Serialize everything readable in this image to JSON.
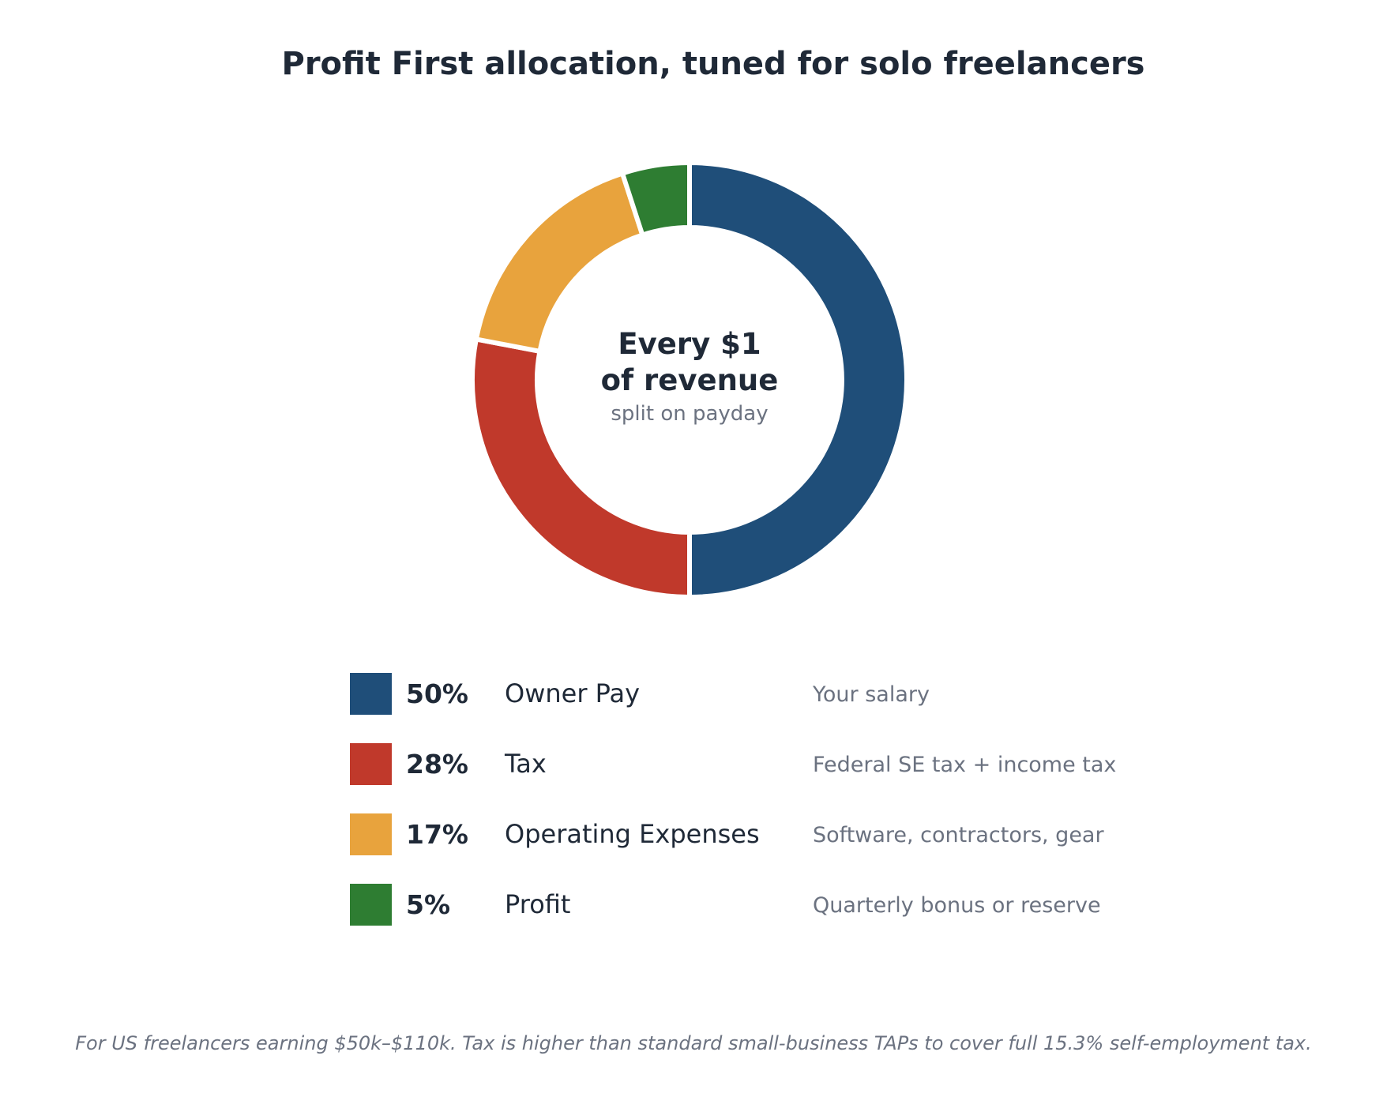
{
  "chart_data": {
    "type": "pie",
    "title": "Profit First allocation, tuned for solo freelancers",
    "center_label": {
      "line1": "Every $1",
      "line2": "of revenue",
      "sub": "split on payday"
    },
    "slices": [
      {
        "label": "Owner Pay",
        "value": 50,
        "value_label": "50%",
        "description": "Your salary",
        "color": "#1f4e79"
      },
      {
        "label": "Tax",
        "value": 28,
        "value_label": "28%",
        "description": "Federal SE tax + income tax",
        "color": "#c0392b"
      },
      {
        "label": "Operating Expenses",
        "value": 17,
        "value_label": "17%",
        "description": "Software, contractors, gear",
        "color": "#e8a33d"
      },
      {
        "label": "Profit",
        "value": 5,
        "value_label": "5%",
        "description": "Quarterly bonus or reserve",
        "color": "#2e7d32"
      }
    ],
    "legend_position": "bottom",
    "footnote": "For US freelancers earning $50k–$110k. Tax is higher than standard small-business TAPs to cover full 15.3% self-employment tax."
  }
}
